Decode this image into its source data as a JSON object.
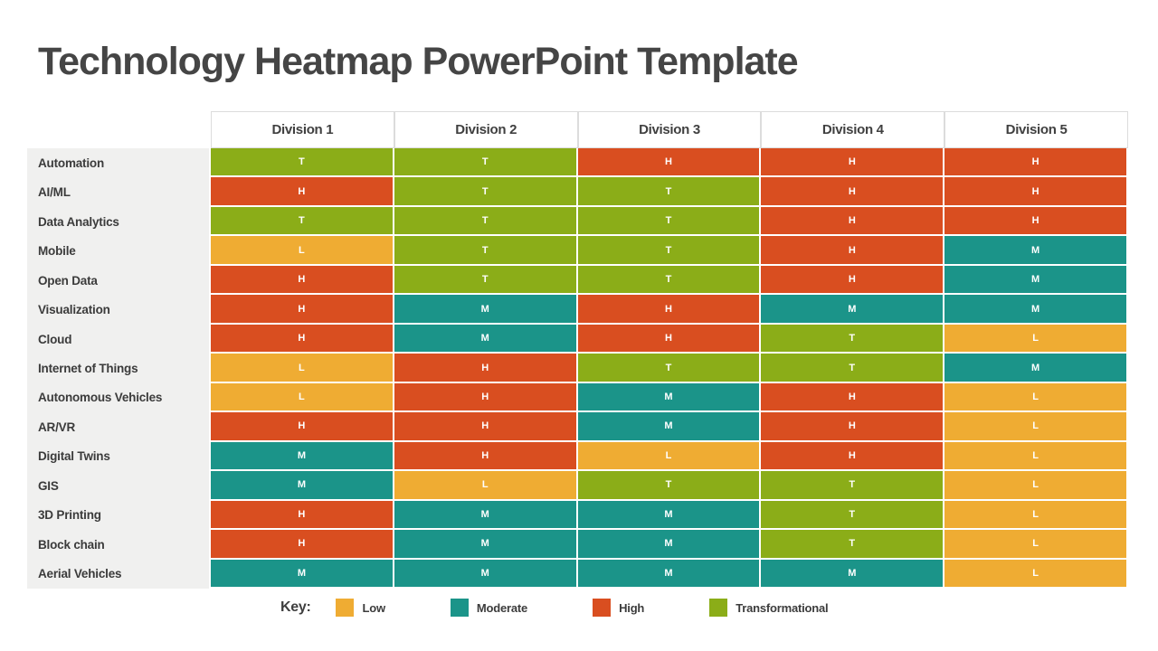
{
  "chart_data": {
    "type": "heatmap",
    "title": "Technology Heatmap PowerPoint Template",
    "columns": [
      "Division 1",
      "Division 2",
      "Division 3",
      "Division 4",
      "Division 5"
    ],
    "rows": [
      "Automation",
      "AI/ML",
      "Data Analytics",
      "Mobile",
      "Open Data",
      "Visualization",
      "Cloud",
      "Internet of Things",
      "Autonomous Vehicles",
      "AR/VR",
      "Digital Twins",
      "GIS",
      "3D Printing",
      "Block chain",
      "Aerial Vehicles"
    ],
    "values": [
      [
        "T",
        "T",
        "H",
        "H",
        "H"
      ],
      [
        "H",
        "T",
        "T",
        "H",
        "H"
      ],
      [
        "T",
        "T",
        "T",
        "H",
        "H"
      ],
      [
        "L",
        "T",
        "T",
        "H",
        "M"
      ],
      [
        "H",
        "T",
        "T",
        "H",
        "M"
      ],
      [
        "H",
        "M",
        "H",
        "M",
        "M"
      ],
      [
        "H",
        "M",
        "H",
        "T",
        "L"
      ],
      [
        "L",
        "H",
        "T",
        "T",
        "M"
      ],
      [
        "L",
        "H",
        "M",
        "H",
        "L"
      ],
      [
        "H",
        "H",
        "M",
        "H",
        "L"
      ],
      [
        "M",
        "H",
        "L",
        "H",
        "L"
      ],
      [
        "M",
        "L",
        "T",
        "T",
        "L"
      ],
      [
        "H",
        "M",
        "M",
        "T",
        "L"
      ],
      [
        "H",
        "M",
        "M",
        "T",
        "L"
      ],
      [
        "M",
        "M",
        "M",
        "M",
        "L"
      ]
    ],
    "value_meanings": {
      "L": "Low",
      "M": "Moderate",
      "H": "High",
      "T": "Transformational"
    },
    "colors": {
      "L": "#EFAC33",
      "M": "#1B9489",
      "H": "#D94E20",
      "T": "#8BAD18"
    },
    "row_label_background": "#F0F0EF",
    "gridline_color": "#FFFFFF",
    "legend_position": "bottom"
  },
  "legend": {
    "key_label": "Key:",
    "items": [
      {
        "code": "L",
        "label": "Low",
        "color": "#EFAC33"
      },
      {
        "code": "M",
        "label": "Moderate",
        "color": "#1B9489"
      },
      {
        "code": "H",
        "label": "High",
        "color": "#D94E20"
      },
      {
        "code": "T",
        "label": "Transformational",
        "color": "#8BAD18"
      }
    ]
  }
}
